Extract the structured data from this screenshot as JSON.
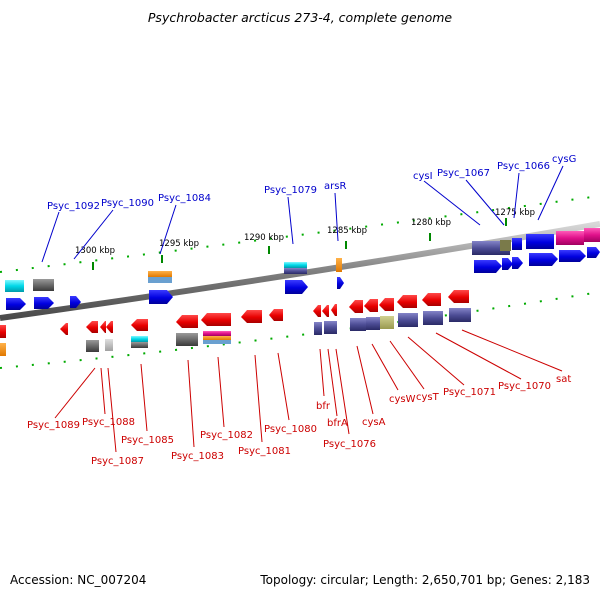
{
  "title": "Psychrobacter arcticus 273-4, complete genome",
  "footer": {
    "accession": "Accession: NC_007204",
    "topology": "Topology: circular; Length: 2,650,701 bp; Genes: 2,183"
  },
  "colors": {
    "forward_label": "#0000cc",
    "reverse_label": "#cc0000",
    "forward_gene": "#0000ee",
    "reverse_gene": "#ee0000",
    "backbone": "#888888",
    "tick": "#008800"
  },
  "kbp_labels": [
    "1300 kbp",
    "1295 kbp",
    "1290 kbp",
    "1285 kbp",
    "1280 kbp",
    "1275 kbp"
  ],
  "forward_labels": [
    "Psyc_1092",
    "Psyc_1090",
    "Psyc_1084",
    "Psyc_1079",
    "arsR",
    "cysI",
    "Psyc_1067",
    "Psyc_1066",
    "cysG"
  ],
  "reverse_labels": [
    "Psyc_1089",
    "Psyc_1088",
    "Psyc_1087",
    "Psyc_1085",
    "Psyc_1083",
    "Psyc_1082",
    "Psyc_1081",
    "Psyc_1080",
    "bfr",
    "bfrA",
    "Psyc_1076",
    "cysA",
    "cysW",
    "cysT",
    "Psyc_1071",
    "Psyc_1070",
    "sat"
  ]
}
